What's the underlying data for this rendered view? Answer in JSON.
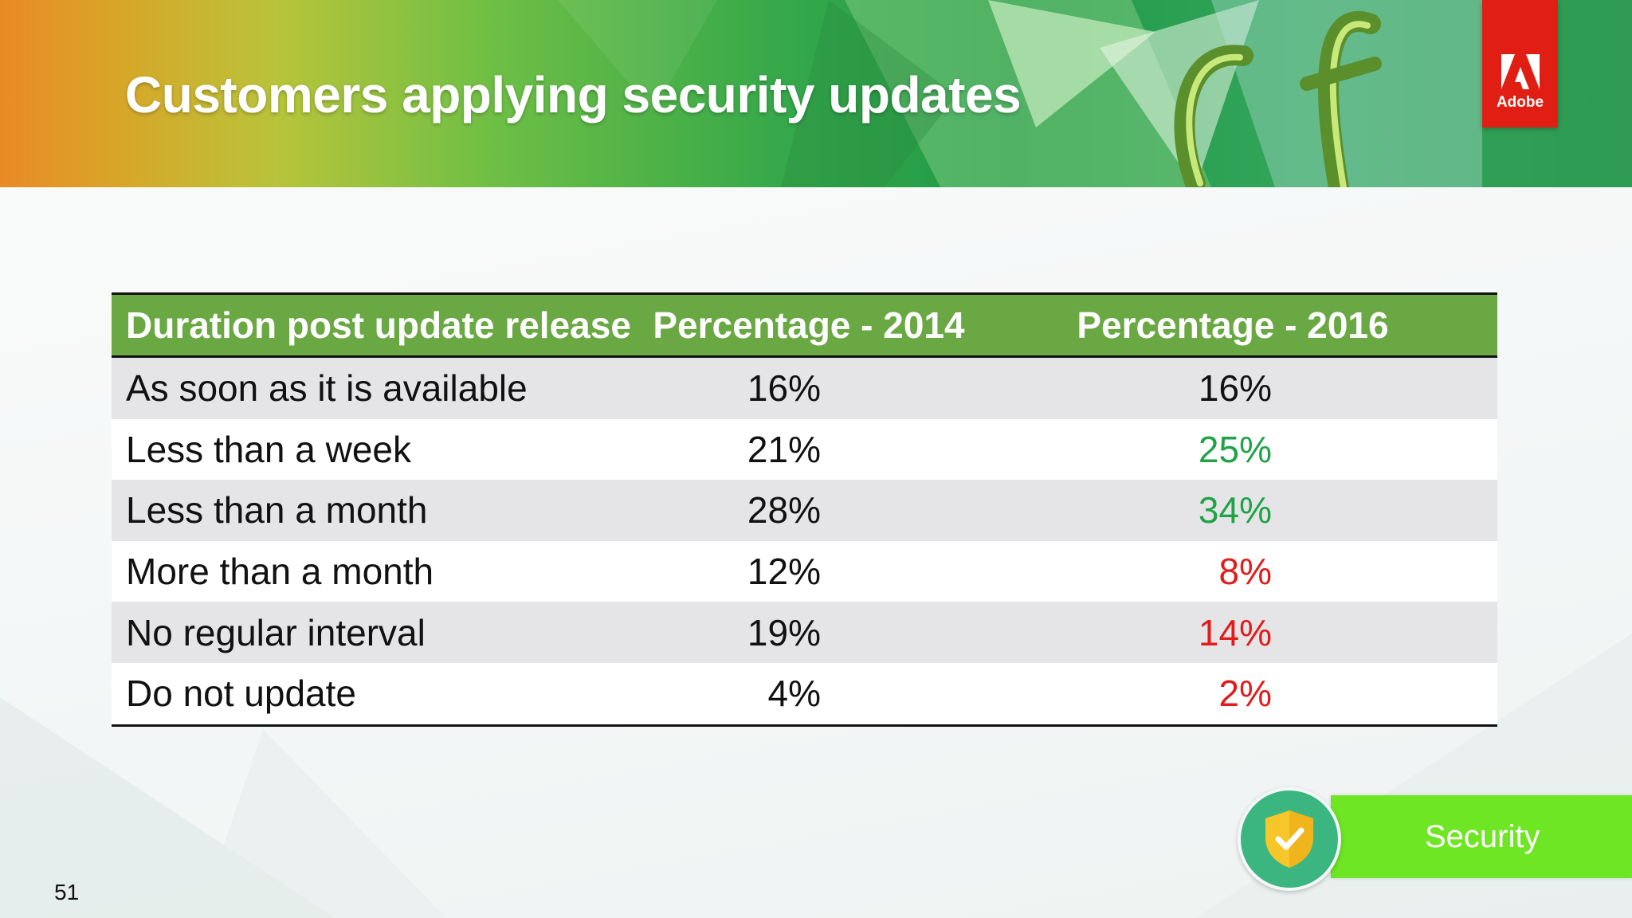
{
  "slide": {
    "title": "Customers applying security updates",
    "page_number": "51"
  },
  "logo": {
    "text": "Adobe"
  },
  "table": {
    "headers": [
      "Duration post update release",
      "Percentage - 2014",
      "Percentage - 2016"
    ],
    "rows": [
      {
        "duration": "As soon as it is available",
        "p2014": "16%",
        "p2016": "16%"
      },
      {
        "duration": "Less than a week",
        "p2014": "21%",
        "p2016": "25%"
      },
      {
        "duration": "Less than a month",
        "p2014": "28%",
        "p2016": "34%"
      },
      {
        "duration": "More than a month",
        "p2014": "12%",
        "p2016": "8%"
      },
      {
        "duration": "No regular interval",
        "p2014": "19%",
        "p2016": "14%"
      },
      {
        "duration": "Do not update",
        "p2014": "4%",
        "p2016": "2%"
      }
    ]
  },
  "badge": {
    "label": "Security"
  },
  "colors": {
    "header_green": "#6aa843",
    "increase_green": "#1fa346",
    "decrease_red": "#e21b1b",
    "adobe_red": "#e01e14",
    "badge_green": "#6ee624"
  }
}
